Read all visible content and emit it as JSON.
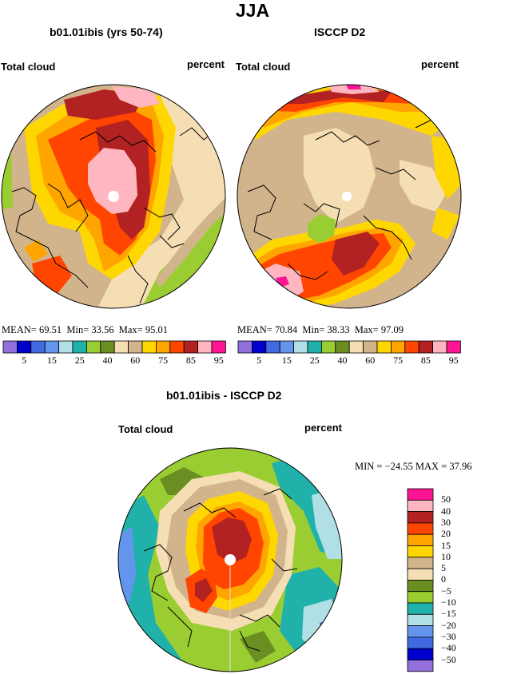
{
  "page_title": "JJA",
  "panels": [
    {
      "title": "b01.01ibis (yrs 50-74)",
      "left_label": "Total cloud",
      "right_label": "percent",
      "stats": {
        "mean_label": "MEAN=",
        "mean": "69.51",
        "min_label": "Min=",
        "min": "33.56",
        "max_label": "Max=",
        "max": "95.01"
      }
    },
    {
      "title": "ISCCP D2",
      "left_label": "Total cloud",
      "right_label": "percent",
      "stats": {
        "mean_label": "MEAN=",
        "mean": "70.84",
        "min_label": "Min=",
        "min": "38.33",
        "max_label": "Max=",
        "max": "97.09"
      }
    },
    {
      "title": "b01.01ibis - ISCCP D2",
      "left_label": "Total cloud",
      "right_label": "percent",
      "stats_line": "MIN = −24.55  MAX =  37.96"
    }
  ],
  "colorbar_abs": {
    "colors": [
      "#9370DB",
      "#0000CD",
      "#4169E1",
      "#6495ED",
      "#B0E0E6",
      "#20B2AA",
      "#9ACD32",
      "#6B8E23",
      "#F5DEB3",
      "#D2B48C",
      "#FFD700",
      "#FFA500",
      "#FF4500",
      "#B22222",
      "#FFB6C1",
      "#FF1493"
    ],
    "labels": [
      "5",
      "15",
      "25",
      "40",
      "60",
      "75",
      "85",
      "95"
    ]
  },
  "colorbar_diff": {
    "colors_top_to_bottom": [
      "#FF1493",
      "#FFB6C1",
      "#B22222",
      "#FF4500",
      "#FFA500",
      "#FFD700",
      "#D2B48C",
      "#F5DEB3",
      "#6B8E23",
      "#9ACD32",
      "#20B2AA",
      "#B0E0E6",
      "#6495ED",
      "#4169E1",
      "#0000CD",
      "#9370DB"
    ],
    "labels_top_to_bottom": [
      "50",
      "40",
      "30",
      "20",
      "15",
      "10",
      "5",
      "0",
      "−5",
      "−10",
      "−15",
      "−20",
      "−30",
      "−40",
      "−50"
    ]
  },
  "maps": [
    {
      "name": "model-map",
      "base": "#D2B48C",
      "patches": [
        "#F5DEB3",
        "#FFD700",
        "#FFA500",
        "#FF4500",
        "#B22222",
        "#FFB6C1",
        "#9ACD32"
      ]
    },
    {
      "name": "obs-map",
      "base": "#D2B48C",
      "patches": [
        "#F5DEB3",
        "#FFD700",
        "#FFA500",
        "#FF4500",
        "#B22222",
        "#FFB6C1",
        "#FF1493",
        "#9ACD32"
      ]
    },
    {
      "name": "diff-map",
      "base": "#9ACD32",
      "patches": [
        "#20B2AA",
        "#B0E0E6",
        "#6495ED",
        "#6B8E23",
        "#F5DEB3",
        "#D2B48C",
        "#FFD700",
        "#FFA500",
        "#FF4500",
        "#B22222"
      ]
    }
  ]
}
